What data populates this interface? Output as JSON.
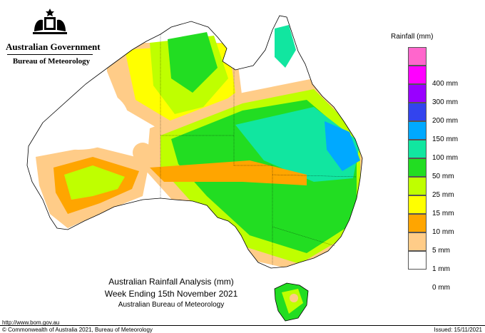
{
  "header": {
    "government": "Australian Government",
    "bureau": "Bureau of Meteorology",
    "crest_icon": "commonwealth-coat-of-arms-icon"
  },
  "legend": {
    "title": "Rainfall (mm)",
    "items": [
      {
        "label": "",
        "color": "#ff66cc"
      },
      {
        "label": "400 mm",
        "color": "#ff00ff"
      },
      {
        "label": "300 mm",
        "color": "#9900ff"
      },
      {
        "label": "200 mm",
        "color": "#3344ee"
      },
      {
        "label": "150 mm",
        "color": "#00a9ff"
      },
      {
        "label": "100 mm",
        "color": "#11e6a0"
      },
      {
        "label": "50 mm",
        "color": "#22dd22"
      },
      {
        "label": "25 mm",
        "color": "#bfff00"
      },
      {
        "label": "15 mm",
        "color": "#ffff00"
      },
      {
        "label": "10 mm",
        "color": "#ffa500"
      },
      {
        "label": "5 mm",
        "color": "#ffcc88"
      },
      {
        "label": "1 mm",
        "color": "#ffffff"
      },
      {
        "label": "0 mm",
        "color": null
      }
    ]
  },
  "map": {
    "region": "Australia",
    "colors": {
      "zero": "#ffffff",
      "one": "#ffcc88",
      "five": "#ffa500",
      "ten": "#ffff00",
      "fifteen": "#bfff00",
      "twentyfive": "#22dd22",
      "fifty": "#11e6a0",
      "hundred": "#00a9ff",
      "onefifty": "#3344ee",
      "border": "#000000"
    }
  },
  "titles": {
    "line1": "Australian Rainfall Analysis (mm)",
    "line2": "Week Ending 15th November 2021",
    "line3": "Australian Bureau of Meteorology"
  },
  "footer": {
    "url": "http://www.bom.gov.au",
    "copyright": "© Commonwealth of Australia 2021, Bureau of Meteorology",
    "issued": "Issued: 15/11/2021"
  }
}
